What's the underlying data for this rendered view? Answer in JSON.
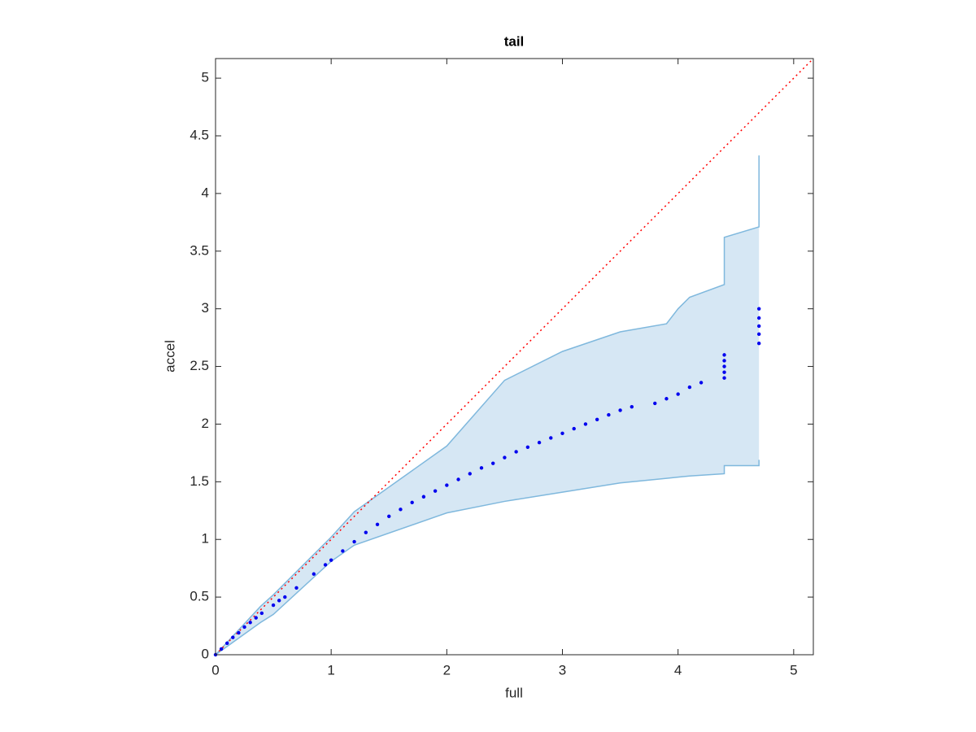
{
  "chart_data": {
    "type": "scatter",
    "title": "tail",
    "xlabel": "full",
    "ylabel": "accel",
    "xlim": [
      0,
      5.17
    ],
    "ylim": [
      0,
      5.17
    ],
    "xticks": [
      0,
      1,
      2,
      3,
      4,
      5
    ],
    "yticks": [
      0,
      0.5,
      1,
      1.5,
      2,
      2.5,
      3,
      3.5,
      4,
      4.5,
      5
    ],
    "band": {
      "color": "#7fb8dd",
      "fill": "#d6e7f4",
      "x": [
        0,
        0.39,
        0.5,
        1,
        1.2,
        2,
        2.5,
        3,
        3.5,
        3.9,
        4,
        4.1,
        4.4,
        4.4,
        4.7,
        4.7
      ],
      "upper": [
        0,
        0.42,
        0.52,
        1.02,
        1.24,
        1.81,
        2.38,
        2.63,
        2.8,
        2.87,
        3.0,
        3.1,
        3.21,
        3.62,
        3.71,
        4.33
      ],
      "lower": [
        0,
        0.28,
        0.35,
        0.81,
        0.95,
        1.23,
        1.33,
        1.41,
        1.49,
        1.53,
        1.54,
        1.55,
        1.57,
        1.64,
        1.64,
        1.69
      ]
    },
    "reference_line": {
      "color": "#ff0000",
      "x": [
        0,
        5.17
      ],
      "y": [
        0,
        5.17
      ]
    },
    "series": [
      {
        "color": "#0000ee",
        "x": [
          0,
          0.05,
          0.1,
          0.15,
          0.2,
          0.25,
          0.3,
          0.35,
          0.4,
          0.5,
          0.55,
          0.6,
          0.7,
          0.85,
          0.95,
          1,
          1.1,
          1.2,
          1.3,
          1.4,
          1.5,
          1.6,
          1.7,
          1.8,
          1.9,
          2,
          2.1,
          2.2,
          2.3,
          2.4,
          2.5,
          2.6,
          2.7,
          2.8,
          2.9,
          3,
          3.1,
          3.2,
          3.3,
          3.4,
          3.5,
          3.6,
          3.8,
          3.9,
          4,
          4.1,
          4.2,
          4.4,
          4.4,
          4.4,
          4.4,
          4.4,
          4.7,
          4.7,
          4.7,
          4.7,
          4.7
        ],
        "y": [
          0,
          0.05,
          0.1,
          0.15,
          0.19,
          0.24,
          0.28,
          0.32,
          0.36,
          0.43,
          0.47,
          0.5,
          0.58,
          0.7,
          0.78,
          0.82,
          0.9,
          0.98,
          1.06,
          1.13,
          1.2,
          1.26,
          1.32,
          1.37,
          1.42,
          1.47,
          1.52,
          1.57,
          1.62,
          1.66,
          1.71,
          1.76,
          1.8,
          1.84,
          1.88,
          1.92,
          1.96,
          2.0,
          2.04,
          2.08,
          2.12,
          2.15,
          2.18,
          2.22,
          2.26,
          2.32,
          2.36,
          2.4,
          2.45,
          2.5,
          2.55,
          2.6,
          2.7,
          2.78,
          2.85,
          2.92,
          3.0
        ]
      }
    ]
  }
}
